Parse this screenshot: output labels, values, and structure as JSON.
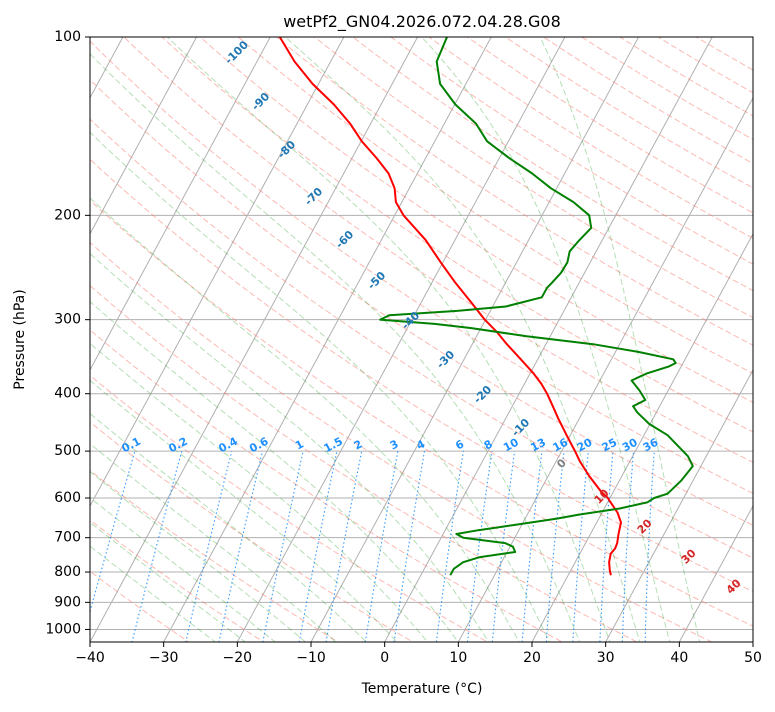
{
  "chart_data": {
    "type": "skew-t",
    "title": "wetPf2_GN04.2026.072.04.28.G08",
    "xlabel": "Temperature (°C)",
    "ylabel": "Pressure (hPa)",
    "xlim": [
      -40,
      50
    ],
    "ylim": [
      1050,
      100
    ],
    "xticks": [
      -40,
      -30,
      -20,
      -10,
      0,
      10,
      20,
      30,
      40,
      50
    ],
    "yticks": [
      100,
      200,
      300,
      400,
      500,
      600,
      700,
      800,
      900,
      1000
    ],
    "colors": {
      "temperature": "#ff0000",
      "dewpoint": "#008000",
      "dry_adiabat": "#fa8072",
      "moist_adiabat": "#2ca02c",
      "mixing_ratio": "#1e90ff",
      "isotherm_label_cold": "#1f77b4",
      "isotherm_label_warm": "#d62728",
      "isotherm_label_zero": "#808080",
      "grid": "#b0b0b0"
    },
    "series": [
      {
        "name": "Temperature",
        "pressure_hpa": [
          810,
          795,
          770,
          745,
          730,
          715,
          700,
          690,
          660,
          635,
          610,
          600,
          585,
          550,
          520,
          500,
          470,
          440,
          420,
          400,
          385,
          370,
          350,
          330,
          315,
          300,
          280,
          260,
          240,
          220,
          200,
          190,
          180,
          170,
          160,
          150,
          140,
          130,
          120,
          110,
          100
        ],
        "temperature_c": [
          25.8,
          25.3,
          24.6,
          24.2,
          24.4,
          24.3,
          24.0,
          23.8,
          23.3,
          22.1,
          20.4,
          19.7,
          18.3,
          15.5,
          13.2,
          11.8,
          9.5,
          7.1,
          5.5,
          3.8,
          2.3,
          0.5,
          -2.3,
          -5.3,
          -7.5,
          -10.1,
          -13.3,
          -16.8,
          -20.3,
          -24.0,
          -28.8,
          -30.8,
          -32.0,
          -33.9,
          -36.7,
          -39.9,
          -42.8,
          -46.4,
          -50.8,
          -54.9,
          -58.7
        ]
      },
      {
        "name": "Dewpoint",
        "pressure_hpa": [
          810,
          790,
          770,
          755,
          740,
          725,
          715,
          700,
          690,
          680,
          665,
          650,
          640,
          625,
          610,
          600,
          590,
          560,
          530,
          510,
          490,
          470,
          450,
          430,
          420,
          410,
          395,
          380,
          370,
          360,
          355,
          350,
          340,
          330,
          320,
          310,
          305,
          300,
          295,
          290,
          285,
          275,
          265,
          260,
          250,
          240,
          230,
          220,
          210,
          200,
          190,
          180,
          170,
          160,
          150,
          140,
          130,
          120,
          110,
          100
        ],
        "dewpoint_c": [
          4.0,
          4.0,
          4.8,
          6.7,
          11.1,
          10.4,
          9.1,
          3.0,
          1.8,
          4.5,
          9.4,
          14.3,
          17.0,
          22.1,
          25.4,
          26.0,
          27.5,
          28.4,
          28.9,
          27.5,
          25.4,
          23.2,
          19.9,
          17.4,
          16.4,
          17.6,
          16.1,
          14.3,
          15.8,
          18.3,
          19.0,
          18.4,
          13.1,
          6.4,
          -3.2,
          -11.3,
          -16.6,
          -24.3,
          -23.4,
          -14.5,
          -8.2,
          -4.0,
          -4.0,
          -3.7,
          -3.2,
          -3.1,
          -3.6,
          -3.1,
          -2.4,
          -3.6,
          -6.7,
          -10.8,
          -14.4,
          -18.7,
          -22.9,
          -25.7,
          -29.9,
          -33.5,
          -35.6,
          -36.0
        ]
      }
    ],
    "isotherm_labels": [
      "-100",
      "-90",
      "-80",
      "-70",
      "-60",
      "-50",
      "-40",
      "-30",
      "-20",
      "-10",
      "0",
      "10",
      "20",
      "30",
      "40"
    ],
    "mixing_ratio_labels": [
      "0.1",
      "0.2",
      "0.4",
      "0.6",
      "1",
      "1.5",
      "2",
      "3",
      "4",
      "6",
      "8",
      "10",
      "13",
      "16",
      "20",
      "25",
      "30",
      "36"
    ]
  }
}
